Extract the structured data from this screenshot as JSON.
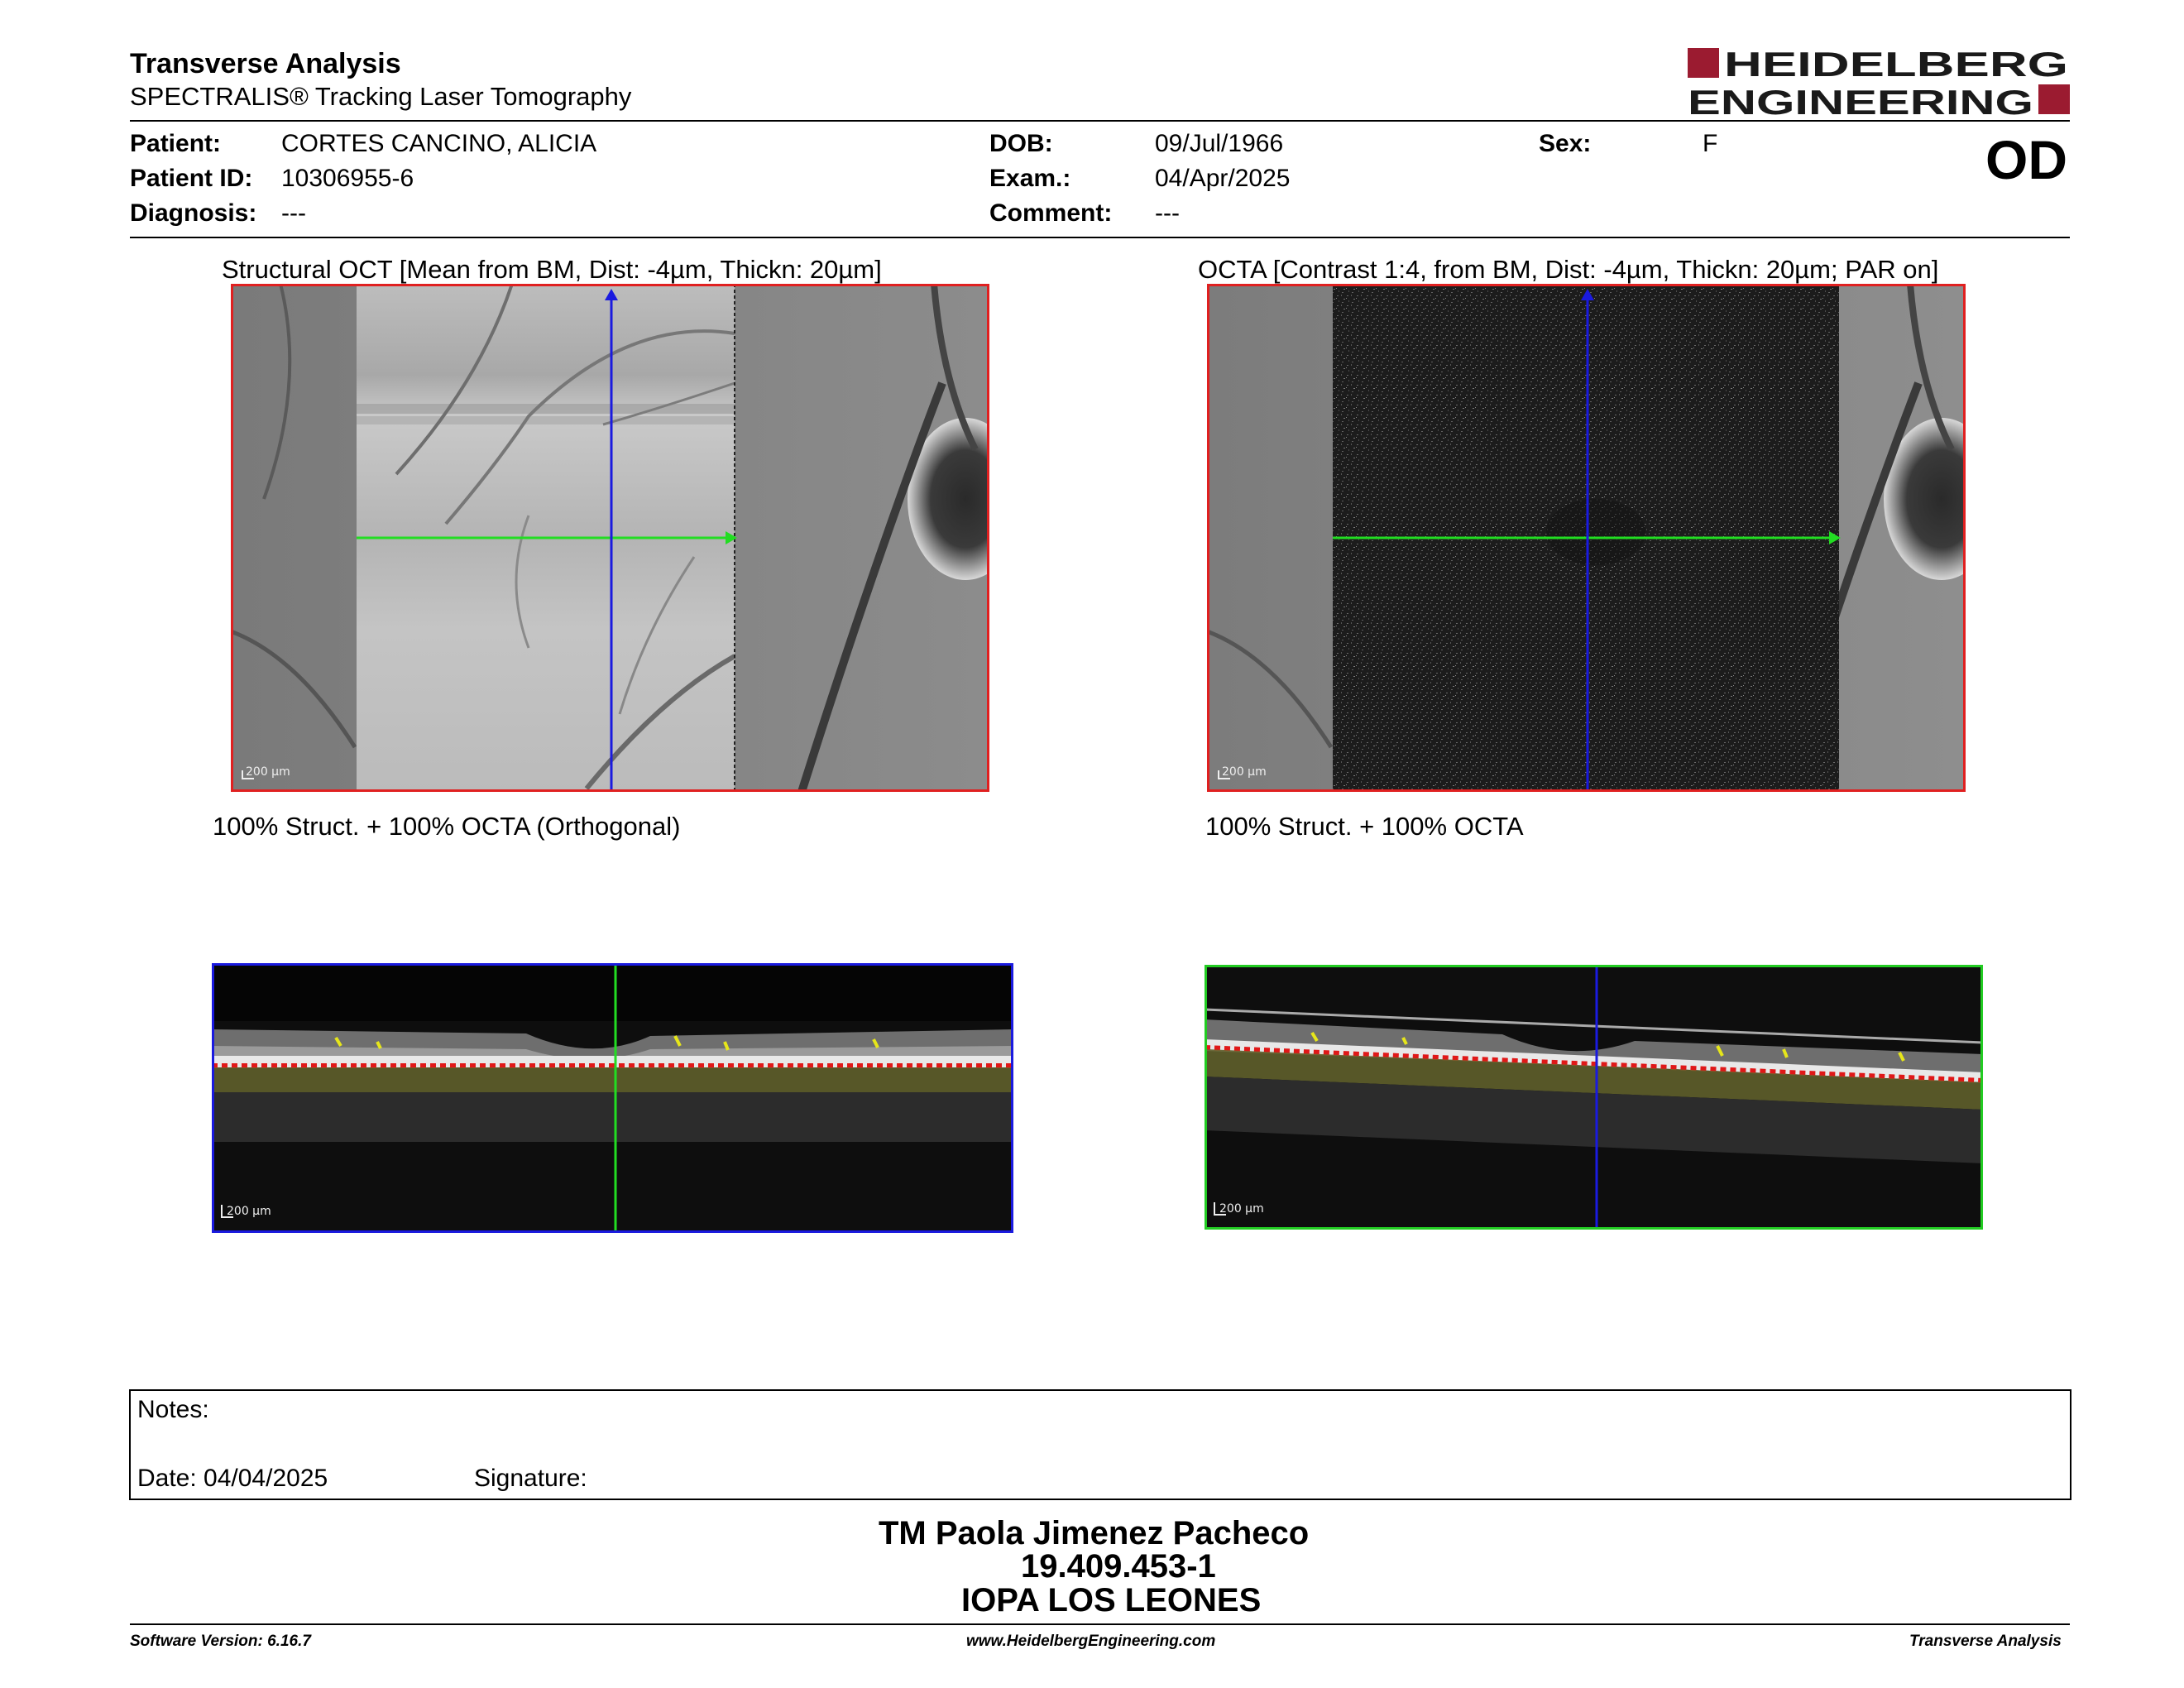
{
  "header": {
    "title": "Transverse Analysis",
    "subtitle": "SPECTRALIS® Tracking Laser Tomography",
    "brand_line1": "HEIDELBERG",
    "brand_line2": "ENGINEERING",
    "brand_color": "#9b1b30"
  },
  "patient": {
    "patient_label": "Patient:",
    "patient_value": "CORTES CANCINO, ALICIA",
    "id_label": "Patient ID:",
    "id_value": "10306955-6",
    "diagnosis_label": "Diagnosis:",
    "diagnosis_value": "---",
    "dob_label": "DOB:",
    "dob_value": "09/Jul/1966",
    "exam_label": "Exam.:",
    "exam_value": "04/Apr/2025",
    "comment_label": "Comment:",
    "comment_value": "---",
    "sex_label": "Sex:",
    "sex_value": "F",
    "eye": "OD"
  },
  "panels": {
    "left_title": "Structural OCT [Mean from BM, Dist: -4µm, Thickn: 20µm]",
    "right_title": "OCTA [Contrast 1:4, from BM, Dist: -4µm, Thickn: 20µm; PAR on]",
    "left_caption": "100% Struct. + 100% OCTA (Orthogonal)",
    "right_caption": "100% Struct. + 100% OCTA",
    "scale_label": "200 µm",
    "frame_red": "#e02020",
    "frame_blue": "#1a1adf",
    "frame_green": "#22cc22"
  },
  "notes": {
    "notes_label": "Notes:",
    "date_label": "Date: 04/04/2025",
    "signature_label": "Signature:"
  },
  "signature_block": {
    "line1": "TM Paola Jimenez Pacheco",
    "line2": "19.409.453-1",
    "line3": "IOPA LOS LEONES"
  },
  "footer": {
    "software": "Software Version: 6.16.7",
    "website": "www.HeidelbergEngineering.com",
    "report": "Transverse Analysis"
  }
}
